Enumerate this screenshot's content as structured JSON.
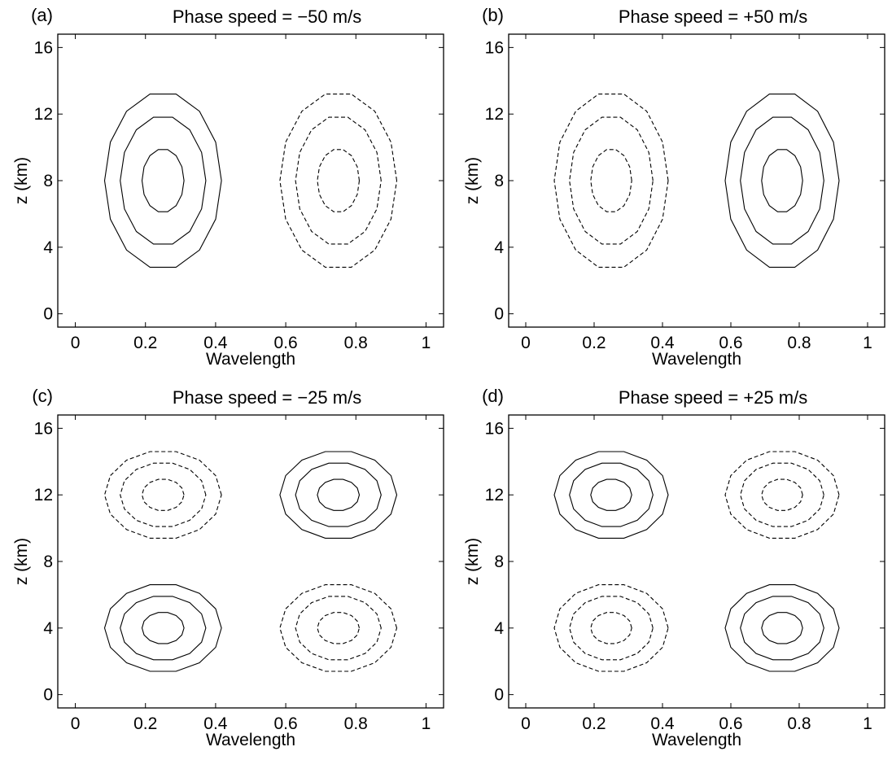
{
  "chart_data": [
    {
      "type": "contour-quiver",
      "panel_label": "(a)",
      "title": "Phase speed = −50 m/s",
      "xlabel": "Wavelength",
      "ylabel": "z (km)",
      "xlim": [
        -0.05,
        1.05
      ],
      "ylim": [
        -0.8,
        16.8
      ],
      "xticks": [
        0,
        0.2,
        0.4,
        0.6,
        0.8,
        1
      ],
      "xtick_labels": [
        "0",
        "0.2",
        "0.4",
        "0.6",
        "0.8",
        "1"
      ],
      "yticks": [
        0,
        4,
        8,
        12,
        16
      ],
      "ytick_labels": [
        "0",
        "4",
        "8",
        "12",
        "16"
      ],
      "vertical_mode": 1,
      "cells": [
        {
          "x_center": 0.25,
          "z_center": 8,
          "x_half_width": 0.22,
          "z_half_height": 7.2,
          "line_style": "solid",
          "circulation": "counterclockwise"
        },
        {
          "x_center": 0.75,
          "z_center": 8,
          "x_half_width": 0.22,
          "z_half_height": 7.2,
          "line_style": "dashed",
          "circulation": "clockwise"
        }
      ],
      "contour_levels": [
        0.93,
        0.72,
        0.5
      ],
      "grid": false
    },
    {
      "type": "contour-quiver",
      "panel_label": "(b)",
      "title": "Phase speed = +50 m/s",
      "xlabel": "Wavelength",
      "ylabel": "z (km)",
      "xlim": [
        -0.05,
        1.05
      ],
      "ylim": [
        -0.8,
        16.8
      ],
      "xticks": [
        0,
        0.2,
        0.4,
        0.6,
        0.8,
        1
      ],
      "xtick_labels": [
        "0",
        "0.2",
        "0.4",
        "0.6",
        "0.8",
        "1"
      ],
      "yticks": [
        0,
        4,
        8,
        12,
        16
      ],
      "ytick_labels": [
        "0",
        "4",
        "8",
        "12",
        "16"
      ],
      "vertical_mode": 1,
      "cells": [
        {
          "x_center": 0.25,
          "z_center": 8,
          "x_half_width": 0.22,
          "z_half_height": 7.2,
          "line_style": "dashed",
          "circulation": "clockwise"
        },
        {
          "x_center": 0.75,
          "z_center": 8,
          "x_half_width": 0.22,
          "z_half_height": 7.2,
          "line_style": "solid",
          "circulation": "counterclockwise"
        }
      ],
      "contour_levels": [
        0.93,
        0.72,
        0.5
      ],
      "grid": false
    },
    {
      "type": "contour-quiver",
      "panel_label": "(c)",
      "title": "Phase speed = −25 m/s",
      "xlabel": "Wavelength",
      "ylabel": "z (km)",
      "xlim": [
        -0.05,
        1.05
      ],
      "ylim": [
        -0.8,
        16.8
      ],
      "xticks": [
        0,
        0.2,
        0.4,
        0.6,
        0.8,
        1
      ],
      "xtick_labels": [
        "0",
        "0.2",
        "0.4",
        "0.6",
        "0.8",
        "1"
      ],
      "yticks": [
        0,
        4,
        8,
        12,
        16
      ],
      "ytick_labels": [
        "0",
        "4",
        "8",
        "12",
        "16"
      ],
      "vertical_mode": 2,
      "cells": [
        {
          "x_center": 0.25,
          "z_center": 4,
          "x_half_width": 0.22,
          "z_half_height": 3.7,
          "line_style": "solid",
          "circulation": "counterclockwise"
        },
        {
          "x_center": 0.75,
          "z_center": 4,
          "x_half_width": 0.22,
          "z_half_height": 3.7,
          "line_style": "dashed",
          "circulation": "clockwise"
        },
        {
          "x_center": 0.25,
          "z_center": 12,
          "x_half_width": 0.22,
          "z_half_height": 3.7,
          "line_style": "dashed",
          "circulation": "clockwise"
        },
        {
          "x_center": 0.75,
          "z_center": 12,
          "x_half_width": 0.22,
          "z_half_height": 3.7,
          "line_style": "solid",
          "circulation": "counterclockwise"
        }
      ],
      "contour_levels": [
        0.93,
        0.72,
        0.5
      ],
      "grid": false
    },
    {
      "type": "contour-quiver",
      "panel_label": "(d)",
      "title": "Phase speed = +25 m/s",
      "xlabel": "Wavelength",
      "ylabel": "z (km)",
      "xlim": [
        -0.05,
        1.05
      ],
      "ylim": [
        -0.8,
        16.8
      ],
      "xticks": [
        0,
        0.2,
        0.4,
        0.6,
        0.8,
        1
      ],
      "xtick_labels": [
        "0",
        "0.2",
        "0.4",
        "0.6",
        "0.8",
        "1"
      ],
      "yticks": [
        0,
        4,
        8,
        12,
        16
      ],
      "ytick_labels": [
        "0",
        "4",
        "8",
        "12",
        "16"
      ],
      "vertical_mode": 2,
      "cells": [
        {
          "x_center": 0.25,
          "z_center": 4,
          "x_half_width": 0.22,
          "z_half_height": 3.7,
          "line_style": "dashed",
          "circulation": "clockwise"
        },
        {
          "x_center": 0.75,
          "z_center": 4,
          "x_half_width": 0.22,
          "z_half_height": 3.7,
          "line_style": "solid",
          "circulation": "counterclockwise"
        },
        {
          "x_center": 0.25,
          "z_center": 12,
          "x_half_width": 0.22,
          "z_half_height": 3.7,
          "line_style": "solid",
          "circulation": "counterclockwise"
        },
        {
          "x_center": 0.75,
          "z_center": 12,
          "x_half_width": 0.22,
          "z_half_height": 3.7,
          "line_style": "dashed",
          "circulation": "clockwise"
        }
      ],
      "contour_levels": [
        0.93,
        0.72,
        0.5
      ],
      "grid": false
    }
  ]
}
